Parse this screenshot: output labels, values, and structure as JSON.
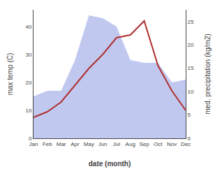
{
  "chart_data": {
    "type": "line",
    "categories": [
      "Jan",
      "Feb",
      "Mar",
      "Apr",
      "May",
      "Jun",
      "Jul",
      "Aug",
      "Sep",
      "Oct",
      "Nov",
      "Dec"
    ],
    "series": [
      {
        "type": "area",
        "color": "#c0c8f0",
        "values": [
          15,
          17,
          17,
          28,
          44,
          43,
          40,
          28,
          27,
          27,
          20,
          21
        ]
      },
      {
        "type": "line",
        "color": "#b03030",
        "values": [
          7.5,
          9.5,
          13,
          19,
          25,
          30,
          36,
          37,
          42,
          26,
          17,
          10
        ]
      }
    ],
    "xlabel": "date (month)",
    "ylabel": "max temp (C)",
    "y2label": "med. precipitation (kg/m2)",
    "ylim": [
      0,
      46
    ],
    "yticks": [
      0,
      10,
      20,
      30,
      40
    ],
    "y2lim": [
      0,
      27.5
    ],
    "y2ticks": [
      0,
      5,
      10,
      15,
      20,
      25
    ],
    "grid": false
  }
}
